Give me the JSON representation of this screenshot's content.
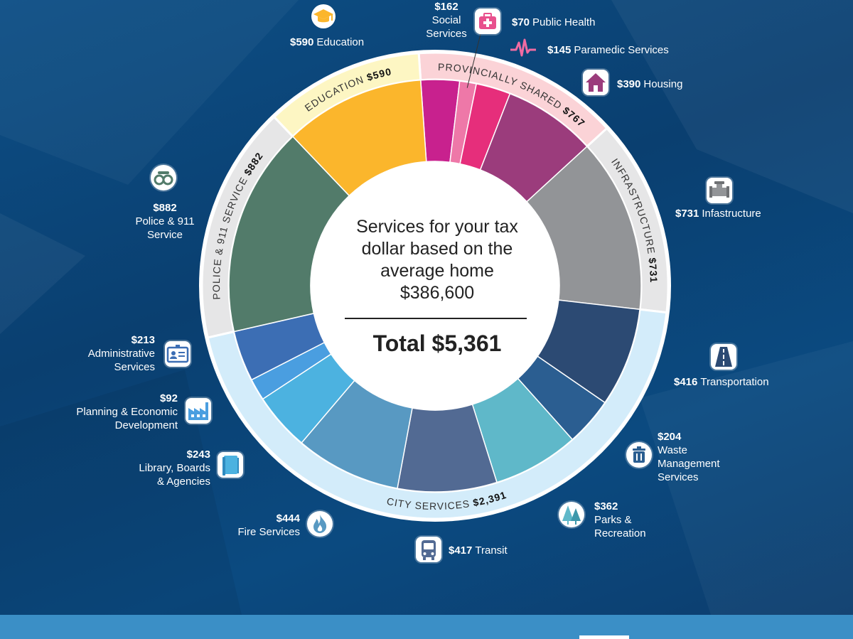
{
  "chart_data": {
    "type": "pie",
    "title": "Services for your tax dollar based on the average home $386,600",
    "total_label": "Total $5,361",
    "slices": [
      {
        "name": "Social Services",
        "value": 162,
        "color": "#c8218e",
        "group": "provincially_shared"
      },
      {
        "name": "Public Health",
        "value": 70,
        "color": "#ee78a8",
        "group": "provincially_shared"
      },
      {
        "name": "Paramedic Services",
        "value": 145,
        "color": "#e62e7b",
        "group": "provincially_shared"
      },
      {
        "name": "Housing",
        "value": 390,
        "color": "#9b3c7c",
        "group": "provincially_shared"
      },
      {
        "name": "Infastructure",
        "value": 731,
        "color": "#929497",
        "group": "infrastructure"
      },
      {
        "name": "Transportation",
        "value": 416,
        "color": "#2c4a73",
        "group": "city_services"
      },
      {
        "name": "Waste Management Services",
        "value": 204,
        "color": "#2b5e91",
        "group": "city_services"
      },
      {
        "name": "Parks & Recreation",
        "value": 362,
        "color": "#5fb8c9",
        "group": "city_services"
      },
      {
        "name": "Transit",
        "value": 417,
        "color": "#526a93",
        "group": "city_services"
      },
      {
        "name": "Fire Services",
        "value": 444,
        "color": "#5899c2",
        "group": "city_services"
      },
      {
        "name": "Library, Boards & Agencies",
        "value": 243,
        "color": "#4cb2e0",
        "group": "city_services"
      },
      {
        "name": "Planning & Economic Development",
        "value": 92,
        "color": "#4a9ee0",
        "group": "city_services"
      },
      {
        "name": "Administrative Services",
        "value": 213,
        "color": "#3c6eb4",
        "group": "city_services"
      },
      {
        "name": "Police & 911 Service",
        "value": 882,
        "color": "#527b6a",
        "group": "police"
      },
      {
        "name": "Education",
        "value": 590,
        "color": "#fbb62c",
        "group": "education"
      }
    ],
    "groups": [
      {
        "id": "provincially_shared",
        "label": "PROVINCIALLY SHARED",
        "amount": "$767",
        "color": "#fbd3d7"
      },
      {
        "id": "infrastructure",
        "label": "INFRASTRUCTURE",
        "amount": "$731",
        "color": "#e6e6e7"
      },
      {
        "id": "city_services",
        "label": "CITY SERVICES",
        "amount": "$2,391",
        "color": "#d3ecfa"
      },
      {
        "id": "police",
        "label": "POLICE & 911 SERVICE",
        "amount": "$882",
        "color": "#e6e6e7"
      },
      {
        "id": "education",
        "label": "EDUCATION",
        "amount": "$590",
        "color": "#fdf6c3"
      }
    ]
  },
  "center": {
    "lines": [
      "Services for your tax",
      "dollar based on the",
      "average home",
      "$386,600"
    ],
    "total": "Total $5,361"
  },
  "callouts": {
    "social": {
      "amount": "$162",
      "name1": "Social",
      "name2": "Services",
      "icon": "first-aid-kit-icon"
    },
    "public_health": {
      "amount": "$70",
      "name": "Public Health"
    },
    "paramedic": {
      "amount": "$145",
      "name": "Paramedic Services",
      "icon": "heartbeat-icon"
    },
    "housing": {
      "amount": "$390",
      "name": "Housing",
      "icon": "house-icon"
    },
    "education": {
      "amount": "$590",
      "name": "Education",
      "icon": "graduation-cap-icon"
    },
    "infrastructure": {
      "amount": "$731",
      "name": "Infastructure",
      "icon": "pipe-icon"
    },
    "police": {
      "amount": "$882",
      "name1": "Police & 911",
      "name2": "Service",
      "icon": "handcuffs-icon"
    },
    "administrative": {
      "amount": "$213",
      "name1": "Administrative",
      "name2": "Services",
      "icon": "id-card-icon"
    },
    "planning": {
      "amount": "$92",
      "name1": "Planning & Economic",
      "name2": "Development",
      "icon": "factory-icon"
    },
    "library": {
      "amount": "$243",
      "name1": "Library, Boards",
      "name2": "& Agencies",
      "icon": "book-icon"
    },
    "fire": {
      "amount": "$444",
      "name": "Fire Services",
      "icon": "flame-icon"
    },
    "transit": {
      "amount": "$417",
      "name": "Transit",
      "icon": "bus-icon"
    },
    "parks": {
      "amount": "$362",
      "name1": "Parks &",
      "name2": "Recreation",
      "icon": "trees-icon"
    },
    "waste": {
      "amount": "$204",
      "name1": "Waste",
      "name2": "Management",
      "name3": "Services",
      "icon": "trash-bin-icon"
    },
    "transportation": {
      "amount": "$416",
      "name": "Transportation",
      "icon": "road-icon"
    }
  }
}
